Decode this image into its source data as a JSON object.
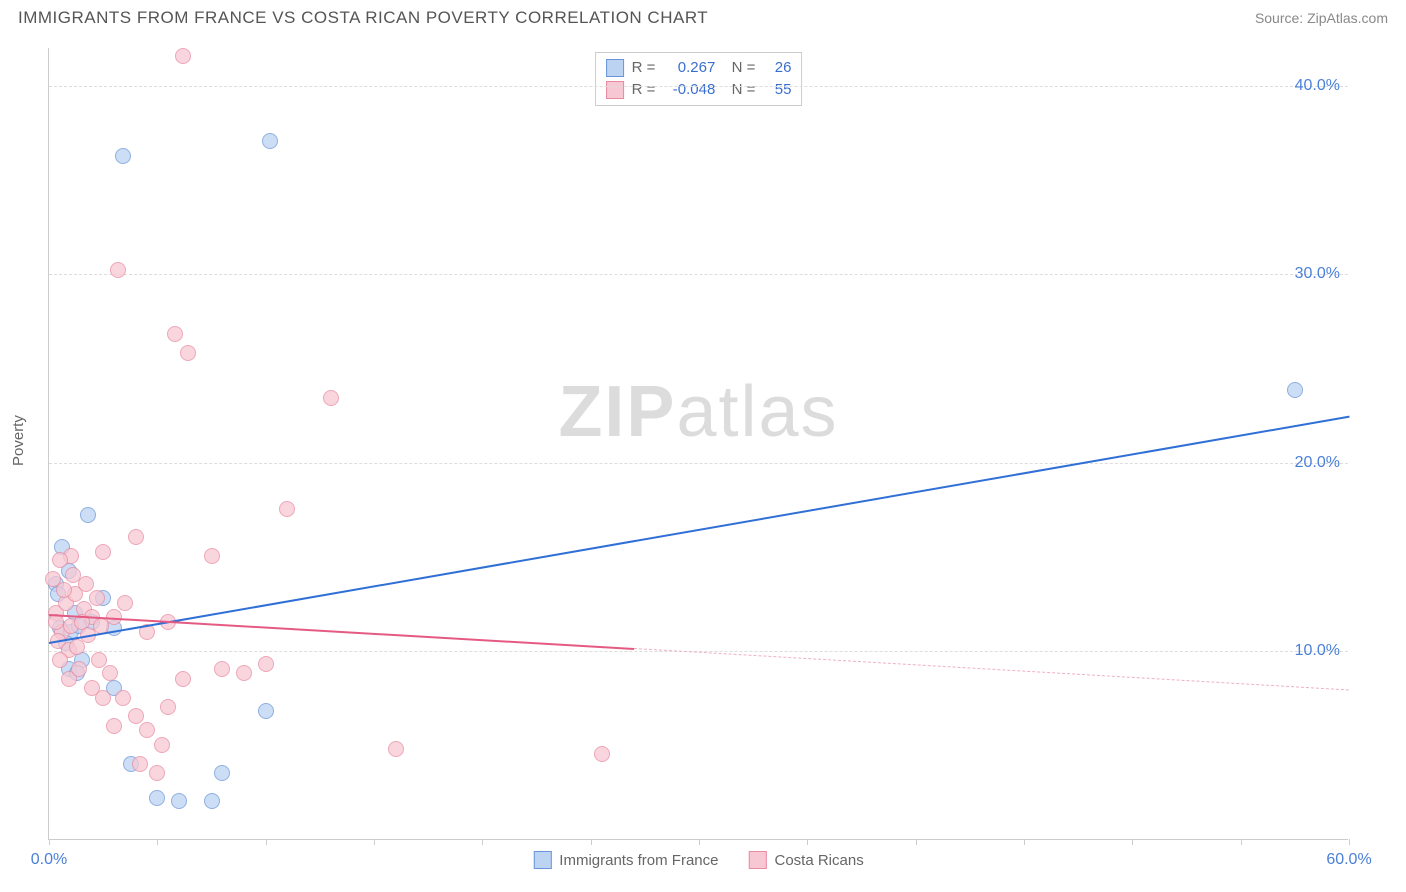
{
  "header": {
    "title": "IMMIGRANTS FROM FRANCE VS COSTA RICAN POVERTY CORRELATION CHART",
    "source_prefix": "Source: ",
    "source": "ZipAtlas.com"
  },
  "chart": {
    "type": "scatter",
    "ylabel": "Poverty",
    "xlim": [
      0,
      60
    ],
    "ylim": [
      0,
      42
    ],
    "xtick_positions": [
      0,
      5,
      10,
      15,
      20,
      25,
      30,
      35,
      40,
      45,
      50,
      55,
      60
    ],
    "xtick_labels": {
      "0": "0.0%",
      "60": "60.0%"
    },
    "ytick_positions": [
      10,
      20,
      30,
      40
    ],
    "ytick_labels": {
      "10": "10.0%",
      "20": "20.0%",
      "30": "30.0%",
      "40": "40.0%"
    },
    "grid_color": "#dddddd",
    "background_color": "#ffffff",
    "series": [
      {
        "name": "Immigrants from France",
        "fill": "#bcd3f2",
        "stroke": "#6a95d8",
        "marker_radius": 8,
        "R": "0.267",
        "N": "26",
        "points": [
          [
            3.4,
            36.2
          ],
          [
            10.2,
            37.0
          ],
          [
            57.5,
            23.8
          ],
          [
            0.5,
            11.2
          ],
          [
            1.0,
            11.0
          ],
          [
            0.8,
            10.4
          ],
          [
            1.5,
            9.5
          ],
          [
            0.3,
            13.5
          ],
          [
            0.9,
            14.2
          ],
          [
            1.2,
            12.0
          ],
          [
            2.0,
            11.5
          ],
          [
            1.8,
            17.2
          ],
          [
            0.6,
            15.5
          ],
          [
            0.4,
            13.0
          ],
          [
            3.0,
            11.2
          ],
          [
            2.5,
            12.8
          ],
          [
            1.4,
            11.3
          ],
          [
            3.0,
            8.0
          ],
          [
            3.8,
            4.0
          ],
          [
            5.0,
            2.2
          ],
          [
            6.0,
            2.0
          ],
          [
            7.5,
            2.0
          ],
          [
            8.0,
            3.5
          ],
          [
            10.0,
            6.8
          ],
          [
            0.9,
            9.0
          ],
          [
            1.3,
            8.8
          ]
        ],
        "trend": {
          "x1": 0,
          "y1": 10.5,
          "x2": 60,
          "y2": 22.5,
          "solid_until_x": 60,
          "color": "#2f6fd6",
          "width": 2
        }
      },
      {
        "name": "Costa Ricans",
        "fill": "#f7c8d3",
        "stroke": "#e88aa0",
        "marker_radius": 8,
        "R": "-0.048",
        "N": "55",
        "points": [
          [
            6.2,
            41.5
          ],
          [
            3.2,
            30.2
          ],
          [
            5.8,
            26.8
          ],
          [
            6.4,
            25.8
          ],
          [
            13.0,
            23.4
          ],
          [
            11.0,
            17.5
          ],
          [
            7.5,
            15.0
          ],
          [
            4.0,
            16.0
          ],
          [
            2.5,
            15.2
          ],
          [
            1.0,
            15.0
          ],
          [
            0.5,
            14.8
          ],
          [
            0.3,
            12.0
          ],
          [
            0.8,
            12.5
          ],
          [
            1.2,
            13.0
          ],
          [
            1.6,
            12.2
          ],
          [
            2.0,
            11.8
          ],
          [
            2.4,
            11.3
          ],
          [
            3.0,
            11.8
          ],
          [
            3.5,
            12.5
          ],
          [
            0.6,
            11.0
          ],
          [
            1.0,
            11.3
          ],
          [
            1.5,
            11.5
          ],
          [
            2.2,
            12.8
          ],
          [
            0.4,
            10.5
          ],
          [
            0.9,
            10.0
          ],
          [
            1.3,
            10.2
          ],
          [
            1.8,
            10.8
          ],
          [
            2.3,
            9.5
          ],
          [
            2.8,
            8.8
          ],
          [
            3.4,
            7.5
          ],
          [
            4.0,
            6.5
          ],
          [
            4.5,
            5.8
          ],
          [
            5.2,
            5.0
          ],
          [
            5.5,
            7.0
          ],
          [
            6.2,
            8.5
          ],
          [
            8.0,
            9.0
          ],
          [
            9.0,
            8.8
          ],
          [
            10.0,
            9.3
          ],
          [
            4.2,
            4.0
          ],
          [
            5.0,
            3.5
          ],
          [
            3.0,
            6.0
          ],
          [
            2.5,
            7.5
          ],
          [
            2.0,
            8.0
          ],
          [
            4.5,
            11.0
          ],
          [
            5.5,
            11.5
          ],
          [
            16.0,
            4.8
          ],
          [
            25.5,
            4.5
          ],
          [
            0.2,
            13.8
          ],
          [
            0.3,
            11.5
          ],
          [
            0.7,
            13.2
          ],
          [
            1.1,
            14.0
          ],
          [
            1.7,
            13.5
          ],
          [
            0.5,
            9.5
          ],
          [
            0.9,
            8.5
          ],
          [
            1.4,
            9.0
          ]
        ],
        "trend": {
          "x1": 0,
          "y1": 12.0,
          "x2": 60,
          "y2": 8.0,
          "solid_until_x": 27,
          "color": "#e55a82",
          "width": 2,
          "dash_color": "#f0b0c0"
        }
      }
    ],
    "watermark": "ZIPatlas",
    "legend_bottom": [
      {
        "label": "Immigrants from France",
        "fill": "#bcd3f2",
        "stroke": "#6a95d8"
      },
      {
        "label": "Costa Ricans",
        "fill": "#f7c8d3",
        "stroke": "#e88aa0"
      }
    ],
    "legend_top_labels": {
      "R": "R =",
      "N": "N ="
    }
  }
}
